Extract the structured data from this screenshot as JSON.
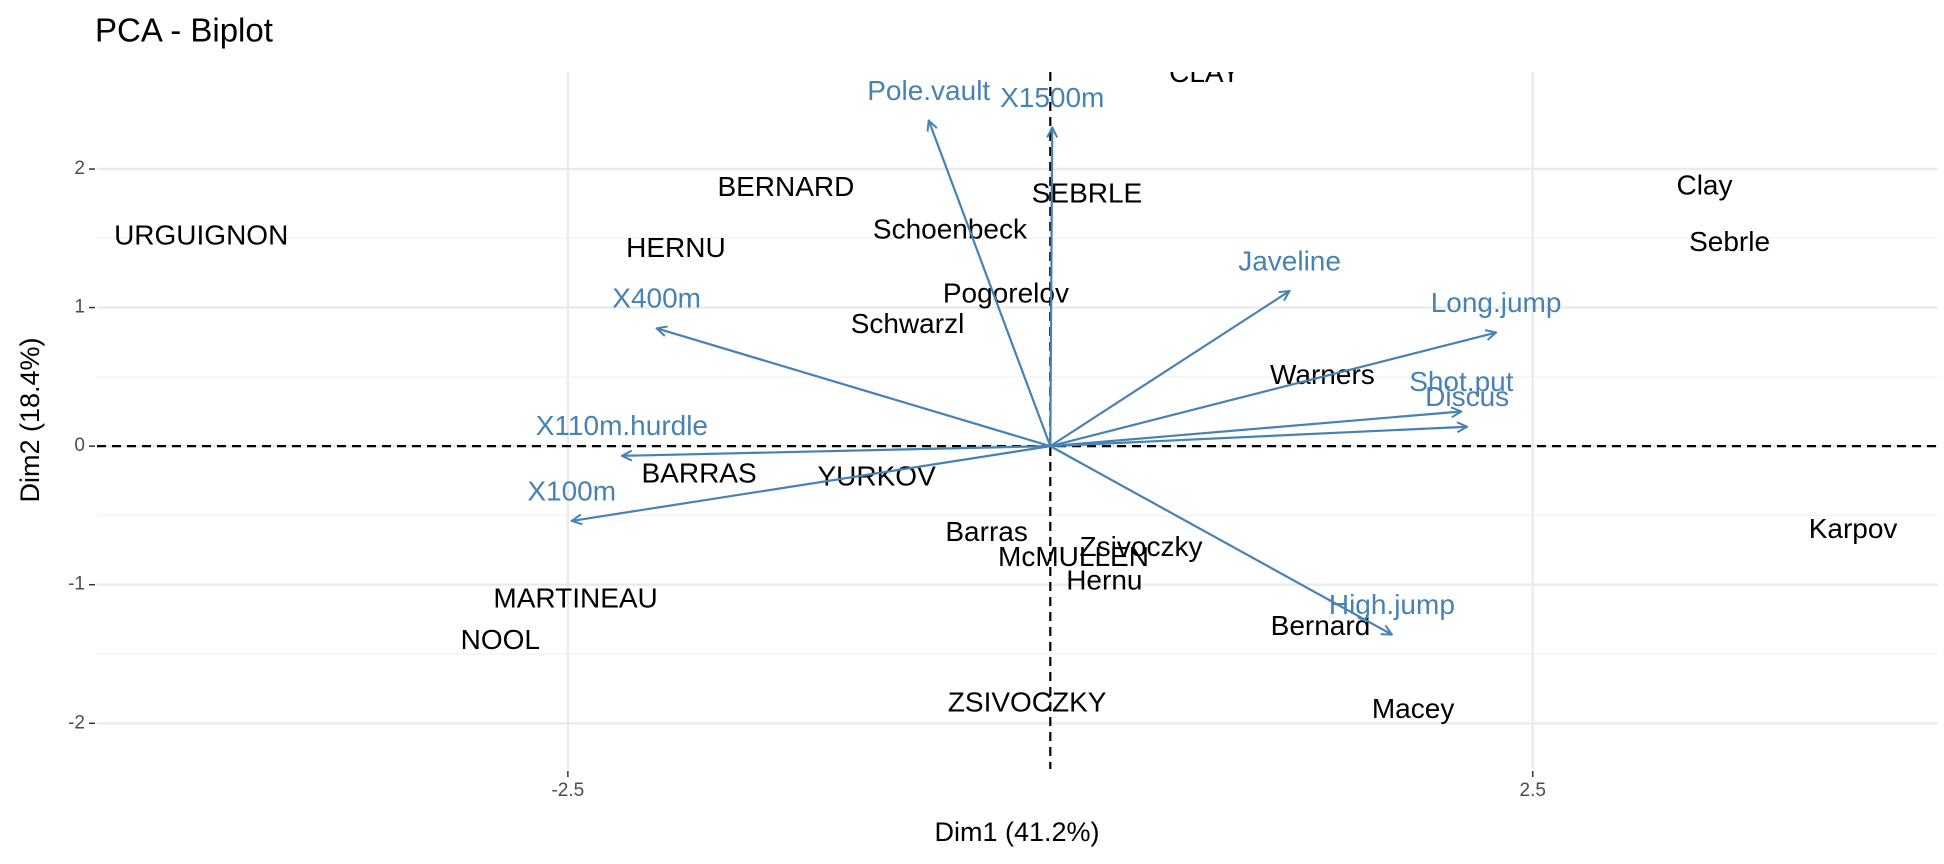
{
  "chart_data": {
    "type": "biplot",
    "title": "PCA - Biplot",
    "x_label": "Dim1 (41.2%)",
    "y_label": "Dim2 (18.4%)",
    "xlim": [
      -4.94,
      4.6
    ],
    "ylim": [
      -2.33,
      2.7
    ],
    "xticks": [
      -2.5,
      2.5
    ],
    "yticks": [
      -2,
      -1,
      0,
      1,
      2
    ],
    "grid": true,
    "individuals": {
      "color": "#000000",
      "names": [
        "CLAY",
        "BERNARD",
        "SEBRLE",
        "URGUIGNON",
        "HERNU",
        "Schoenbeck",
        "Pogorelov",
        "Schwarzl",
        "Clay",
        "Sebrle",
        "Warners",
        "BARRAS",
        "YURKOV",
        "Karpov",
        "Barras",
        "Zsivoczky",
        "McMULLEN",
        "Hernu",
        "MARTINEAU",
        "NOOL",
        "Bernard",
        "Macey",
        "ZSIVOCZKY"
      ],
      "x": [
        0.8,
        -1.37,
        0.19,
        -4.4,
        -1.94,
        -0.52,
        -0.23,
        -0.74,
        3.39,
        3.52,
        1.41,
        -1.82,
        -0.9,
        4.16,
        -0.33,
        0.47,
        0.12,
        0.28,
        -2.46,
        -2.85,
        1.4,
        1.88,
        -0.12
      ],
      "y": [
        2.68,
        1.86,
        1.81,
        1.51,
        1.42,
        1.55,
        1.09,
        0.87,
        1.87,
        1.46,
        0.5,
        -0.21,
        -0.23,
        -0.61,
        -0.63,
        -0.74,
        -0.81,
        -0.98,
        -1.11,
        -1.41,
        -1.31,
        -1.91,
        -1.86
      ]
    },
    "variables": {
      "color": "#4682b4",
      "names": [
        "Pole.vault",
        "X1500m",
        "Javeline",
        "Long.jump",
        "Shot.put",
        "Discus",
        "High.jump",
        "X400m",
        "X110m.hurdle",
        "X100m"
      ],
      "x": [
        -0.63,
        0.01,
        1.24,
        2.31,
        2.13,
        2.16,
        1.77,
        -2.04,
        -2.22,
        -2.48
      ],
      "y": [
        2.35,
        2.3,
        1.12,
        0.82,
        0.25,
        0.14,
        -1.36,
        0.85,
        -0.07,
        -0.54
      ]
    }
  }
}
